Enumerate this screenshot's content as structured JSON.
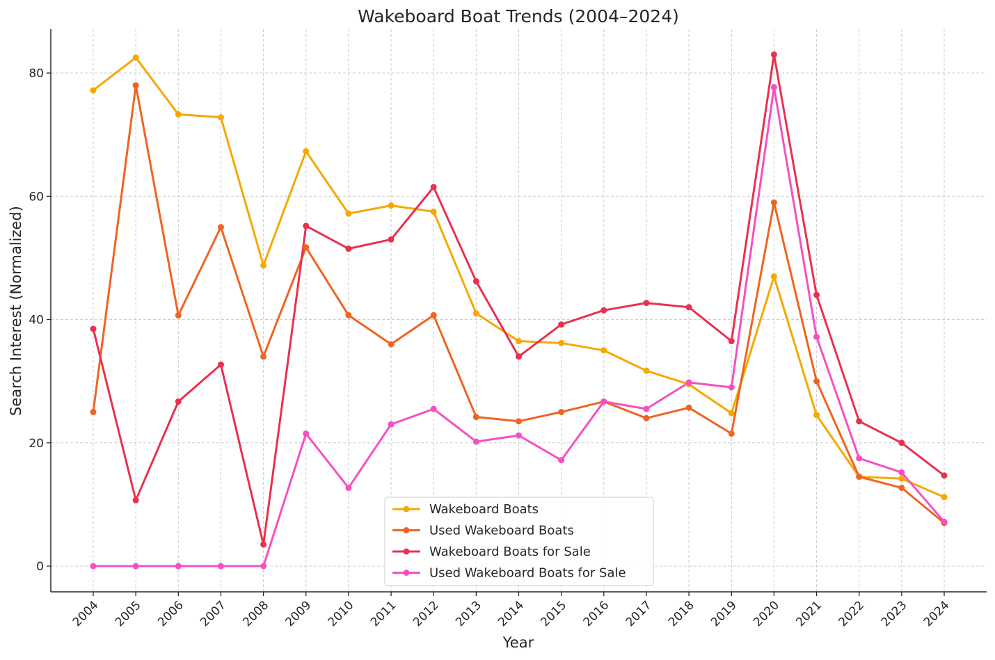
{
  "chart_data": {
    "type": "line",
    "title": "Wakeboard Boat Trends (2004–2024)",
    "xlabel": "Year",
    "ylabel": "Search Interest (Normalized)",
    "categories": [
      "2004",
      "2005",
      "2006",
      "2007",
      "2008",
      "2009",
      "2010",
      "2011",
      "2012",
      "2013",
      "2014",
      "2015",
      "2016",
      "2017",
      "2018",
      "2019",
      "2020",
      "2021",
      "2022",
      "2023",
      "2024"
    ],
    "ylim": [
      -4,
      87
    ],
    "yticks": [
      0,
      20,
      40,
      60,
      80
    ],
    "grid": true,
    "legend_position": "bottom-center",
    "series": [
      {
        "name": "Wakeboard Boats",
        "color": "#f5a800",
        "values": [
          77.2,
          82.5,
          73.3,
          72.8,
          48.8,
          67.3,
          57.2,
          58.5,
          57.5,
          41.0,
          36.5,
          36.2,
          35.0,
          31.7,
          29.5,
          24.8,
          47.0,
          24.5,
          14.5,
          14.2,
          11.2
        ]
      },
      {
        "name": "Used Wakeboard Boats",
        "color": "#ee6422",
        "values": [
          25.0,
          78.0,
          40.7,
          55.0,
          34.0,
          51.7,
          40.7,
          36.0,
          40.7,
          24.2,
          23.5,
          25.0,
          26.7,
          24.0,
          25.7,
          21.5,
          59.0,
          30.0,
          14.5,
          12.7,
          7.0
        ]
      },
      {
        "name": "Wakeboard Boats for Sale",
        "color": "#e8314f",
        "values": [
          38.5,
          10.7,
          26.7,
          32.7,
          3.5,
          55.2,
          51.5,
          53.0,
          61.5,
          46.2,
          34.0,
          39.2,
          41.5,
          42.7,
          42.0,
          36.5,
          83.0,
          44.0,
          23.5,
          20.0,
          14.7
        ]
      },
      {
        "name": "Used Wakeboard Boats for Sale",
        "color": "#f550c2",
        "values": [
          0,
          0,
          0,
          0,
          0,
          21.5,
          12.7,
          23.0,
          25.5,
          20.2,
          21.2,
          17.2,
          26.7,
          25.5,
          29.8,
          29.0,
          77.7,
          37.2,
          17.5,
          15.2,
          7.2
        ]
      }
    ]
  }
}
